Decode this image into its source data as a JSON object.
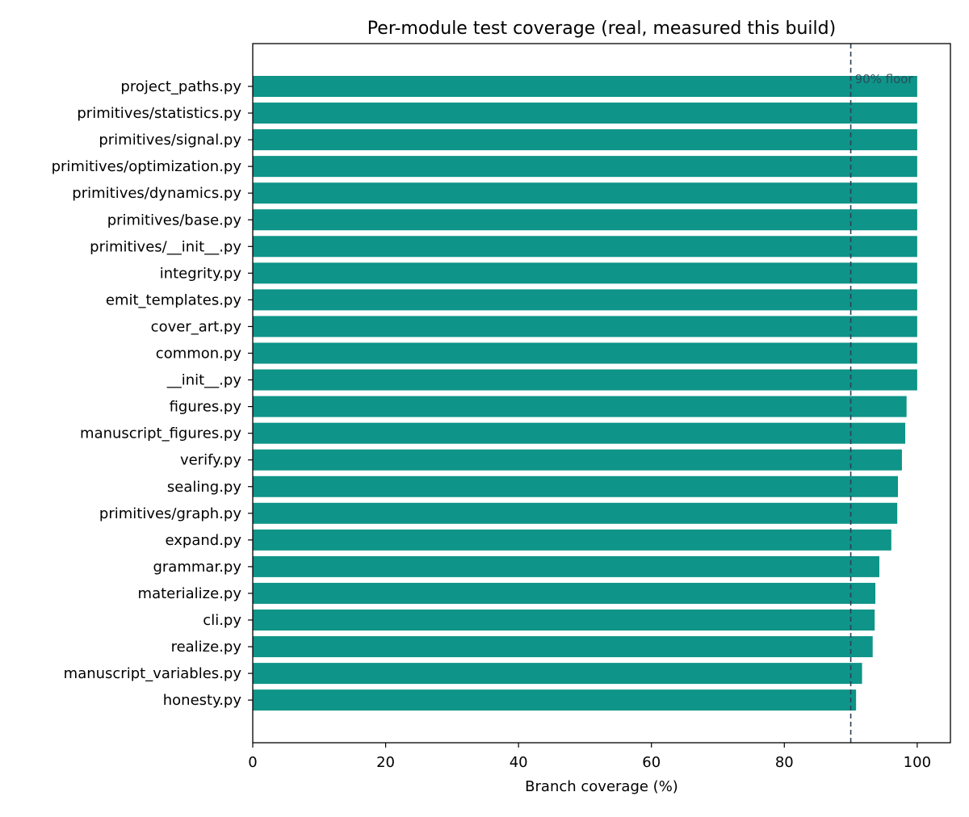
{
  "chart_data": {
    "type": "bar",
    "orientation": "horizontal",
    "title": "Per-module test coverage (real, measured this build)",
    "xlabel": "Branch coverage (%)",
    "ylabel": "",
    "xlim": [
      0,
      105
    ],
    "xticks": [
      0,
      20,
      40,
      60,
      80,
      100
    ],
    "grid": false,
    "bar_color": "#0e9488",
    "categories": [
      "project_paths.py",
      "primitives/statistics.py",
      "primitives/signal.py",
      "primitives/optimization.py",
      "primitives/dynamics.py",
      "primitives/base.py",
      "primitives/__init__.py",
      "integrity.py",
      "emit_templates.py",
      "cover_art.py",
      "common.py",
      "__init__.py",
      "figures.py",
      "manuscript_figures.py",
      "verify.py",
      "sealing.py",
      "primitives/graph.py",
      "expand.py",
      "grammar.py",
      "materialize.py",
      "cli.py",
      "realize.py",
      "manuscript_variables.py",
      "honesty.py"
    ],
    "values": [
      100,
      100,
      100,
      100,
      100,
      100,
      100,
      100,
      100,
      100,
      100,
      100,
      98.4,
      98.2,
      97.7,
      97.1,
      97.0,
      96.1,
      94.3,
      93.7,
      93.6,
      93.3,
      91.7,
      90.8
    ],
    "reference_line": {
      "value": 90,
      "label": "90% floor",
      "style": "dashed",
      "color": "#2e3f56"
    }
  }
}
